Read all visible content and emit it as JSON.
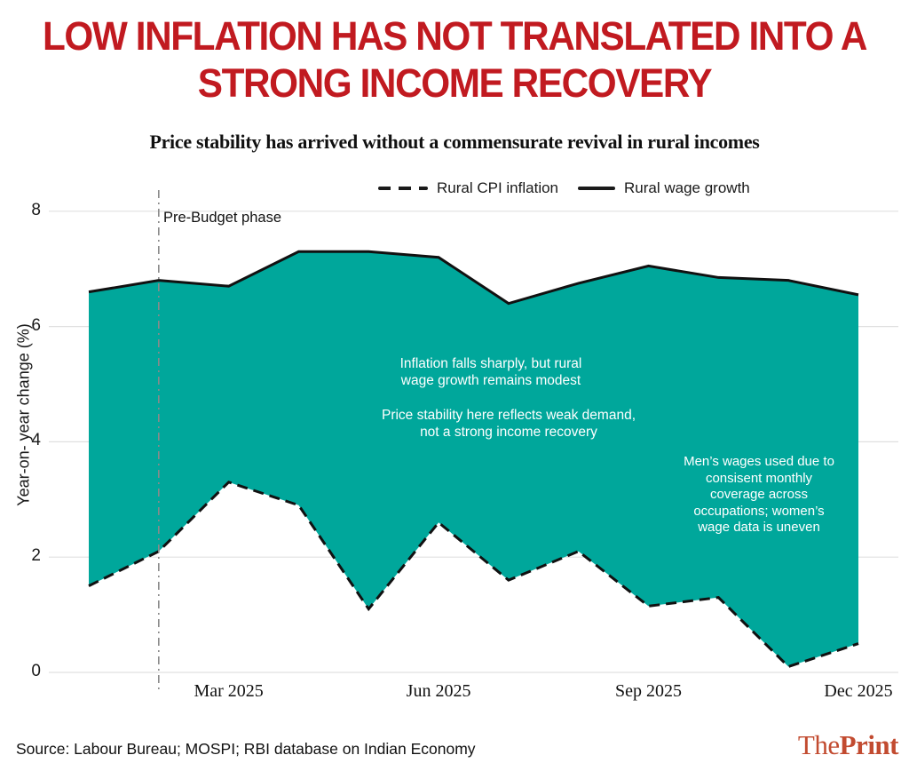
{
  "colors": {
    "title_red": "#c11a20",
    "teal_fill": "#00a79b",
    "line_black": "#111111",
    "grid_gray": "#e0e0e0",
    "vline_gray": "#8a8a8a",
    "logo_red": "#c24b30"
  },
  "legend": {
    "items": [
      {
        "label": "Rural CPI inflation",
        "style": "dashed"
      },
      {
        "label": "Rural wage growth",
        "style": "solid"
      }
    ]
  },
  "chart_data": {
    "type": "area",
    "title": "LOW INFLATION HAS NOT TRANSLATED INTO A\nSTRONG INCOME RECOVERY",
    "subtitle": "Price stability has arrived without a commensurate revival in rural incomes",
    "x": [
      "Jan 2025",
      "Feb 2025",
      "Mar 2025",
      "Apr 2025",
      "May 2025",
      "Jun 2025",
      "Jul 2025",
      "Aug 2025",
      "Sep 2025",
      "Oct 2025",
      "Nov 2025",
      "Dec 2025"
    ],
    "series": [
      {
        "name": "Rural CPI inflation",
        "line_style": "dashed",
        "values": [
          1.5,
          2.1,
          3.3,
          2.9,
          1.1,
          2.6,
          1.6,
          2.1,
          1.15,
          1.3,
          0.1,
          0.5
        ]
      },
      {
        "name": "Rural wage growth",
        "line_style": "solid",
        "values": [
          6.6,
          6.8,
          6.7,
          7.3,
          7.3,
          7.2,
          6.4,
          6.75,
          7.05,
          6.85,
          6.8,
          6.55
        ]
      }
    ],
    "fill_between_series": true,
    "ylabel": "Year-on- year change (%)",
    "ylim": [
      0,
      8
    ],
    "y_ticks": [
      0,
      2,
      4,
      6,
      8
    ],
    "x_tick_labels": [
      {
        "index": 2,
        "label": "Mar 2025"
      },
      {
        "index": 5,
        "label": "Jun 2025"
      },
      {
        "index": 8,
        "label": "Sep 2025"
      },
      {
        "index": 11,
        "label": "Dec 2025"
      }
    ],
    "grid": "horizontal",
    "legend_position": "top",
    "vline": {
      "index": 1,
      "label": "Pre-Budget phase"
    },
    "annotations": [
      {
        "text": "Inflation falls sharply, but rural\nwage growth remains modest"
      },
      {
        "text": "Price stability here reflects weak demand,\nnot a strong income recovery"
      },
      {
        "text": "Men’s wages used due to\nconsisent monthly\ncoverage across\noccupations; women’s\nwage data is uneven"
      }
    ]
  },
  "footer": {
    "source": "Source: Labour Bureau; MOSPI; RBI database on Indian Economy",
    "logo": {
      "prefix": "The",
      "suffix": "Print"
    }
  }
}
